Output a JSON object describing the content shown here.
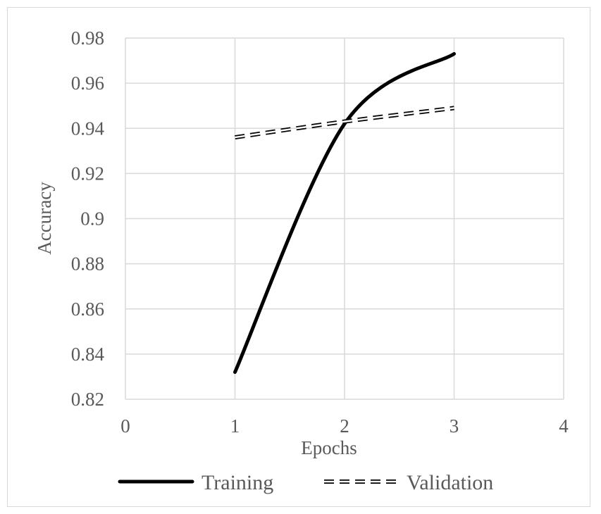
{
  "chart_data": {
    "type": "line",
    "title": "",
    "xlabel": "Epochs",
    "ylabel": "Accuracy",
    "xlim": [
      0,
      4
    ],
    "ylim": [
      0.82,
      0.98
    ],
    "x_ticks": [
      "0",
      "1",
      "2",
      "3",
      "4"
    ],
    "y_ticks": [
      "0.98",
      "0.96",
      "0.94",
      "0.92",
      "0.9",
      "0.88",
      "0.86",
      "0.84",
      "0.82"
    ],
    "grid": true,
    "legend_position": "bottom",
    "series": [
      {
        "name": "Training",
        "style": "solid",
        "color": "#000000",
        "x": [
          1,
          2,
          3
        ],
        "y": [
          0.832,
          0.942,
          0.973
        ]
      },
      {
        "name": "Validation",
        "style": "dashed-double",
        "color": "#000000",
        "x": [
          1,
          2,
          3
        ],
        "y": [
          0.936,
          0.943,
          0.949
        ]
      }
    ]
  }
}
